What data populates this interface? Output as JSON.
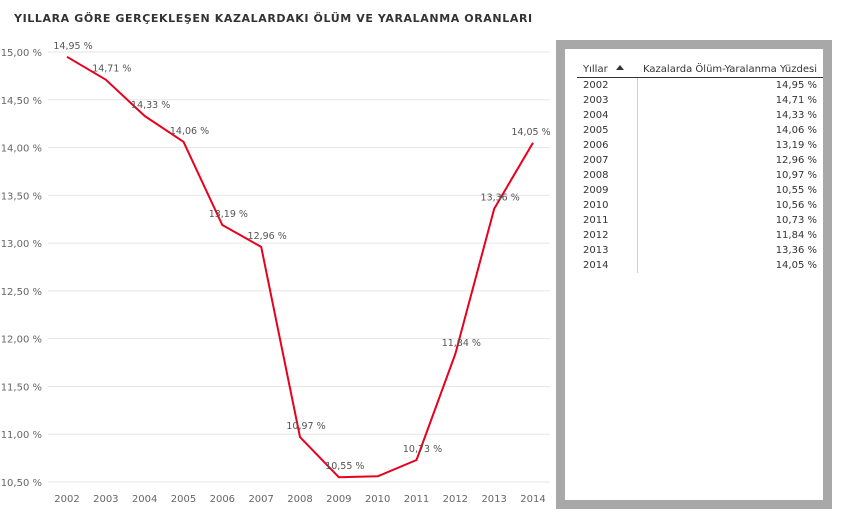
{
  "title": "YILLARA GÖRE GERÇEKLEŞEN KAZALARDAKI ÖLÜM VE YARALANMA ORANLARI",
  "chart_data": {
    "type": "line",
    "title": "YILLARA GÖRE GERÇEKLEŞEN KAZALARDAKI ÖLÜM VE YARALANMA ORANLARI",
    "x": [
      "2002",
      "2003",
      "2004",
      "2005",
      "2006",
      "2007",
      "2008",
      "2009",
      "2010",
      "2011",
      "2012",
      "2013",
      "2014"
    ],
    "series": [
      {
        "values": [
          14.95,
          14.71,
          14.33,
          14.06,
          13.19,
          12.96,
          10.97,
          10.55,
          10.56,
          10.73,
          11.84,
          13.36,
          14.05
        ],
        "labels": [
          "14,95 %",
          "14,71 %",
          "14,33 %",
          "14,06 %",
          "13,19 %",
          "12,96 %",
          "10,97 %",
          "10,55 %",
          "10,56 %",
          "10,73 %",
          "11,84 %",
          "13,36 %",
          "14,05 %"
        ],
        "color": "#e8001c"
      }
    ],
    "yticks": [
      10.5,
      11.0,
      11.5,
      12.0,
      12.5,
      13.0,
      13.5,
      14.0,
      14.5,
      15.0
    ],
    "ytick_labels": [
      "10,50 %",
      "11,00 %",
      "11,50 %",
      "12,00 %",
      "12,50 %",
      "13,00 %",
      "13,50 %",
      "14,00 %",
      "14,50 %",
      "15,00 %"
    ],
    "ylim": [
      10.5,
      15.0
    ],
    "grid": true,
    "shown_labels": [
      true,
      true,
      true,
      true,
      true,
      true,
      true,
      true,
      false,
      true,
      true,
      true,
      true
    ]
  },
  "table": {
    "headers": [
      "Yıllar",
      "Kazalarda Ölüm-Yaralanma Yüzdesi"
    ],
    "sort_icon": "sort-ascending-icon",
    "rows": [
      [
        "2002",
        "14,95 %"
      ],
      [
        "2003",
        "14,71 %"
      ],
      [
        "2004",
        "14,33 %"
      ],
      [
        "2005",
        "14,06 %"
      ],
      [
        "2006",
        "13,19 %"
      ],
      [
        "2007",
        "12,96 %"
      ],
      [
        "2008",
        "10,97 %"
      ],
      [
        "2009",
        "10,55 %"
      ],
      [
        "2010",
        "10,56 %"
      ],
      [
        "2011",
        "10,73 %"
      ],
      [
        "2012",
        "11,84 %"
      ],
      [
        "2013",
        "13,36 %"
      ],
      [
        "2014",
        "14,05 %"
      ]
    ]
  }
}
